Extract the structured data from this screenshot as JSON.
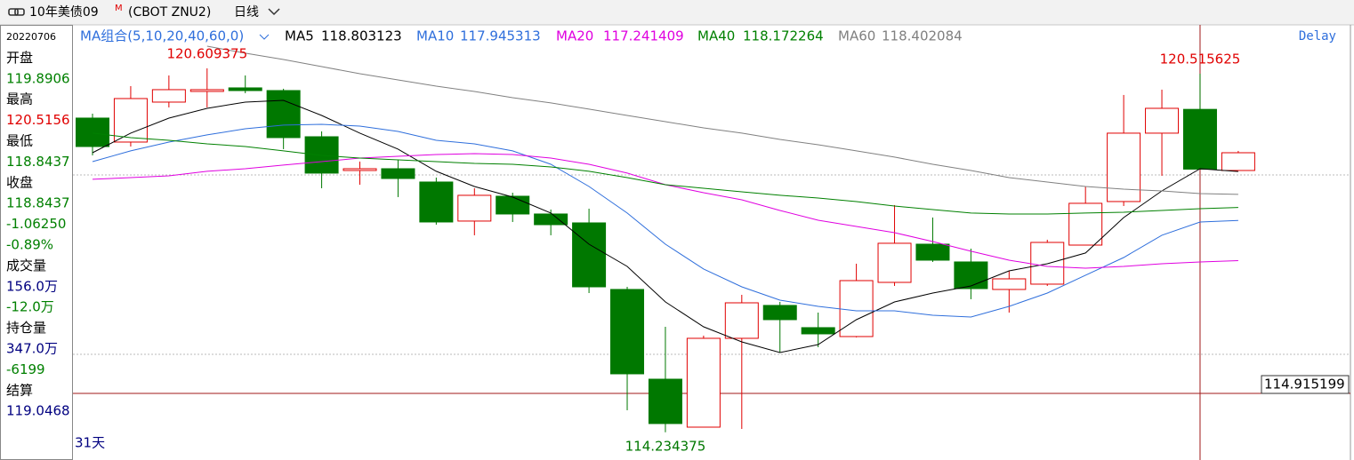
{
  "header": {
    "title": "10年美债09",
    "badge": "M",
    "code": "(CBOT ZNU2)",
    "period": "日线"
  },
  "panel": {
    "items": [
      {
        "text": "20220706",
        "color": "#000000"
      },
      {
        "text": "开盘",
        "color": "#000000"
      },
      {
        "text": "119.8906",
        "color": "#008000"
      },
      {
        "text": "最高",
        "color": "#000000"
      },
      {
        "text": "120.5156",
        "color": "#e00000"
      },
      {
        "text": "最低",
        "color": "#000000"
      },
      {
        "text": "118.8437",
        "color": "#008000"
      },
      {
        "text": "收盘",
        "color": "#000000"
      },
      {
        "text": "118.8437",
        "color": "#008000"
      },
      {
        "text": "-1.06250",
        "color": "#008000"
      },
      {
        "text": "-0.89%",
        "color": "#008000"
      },
      {
        "text": "成交量",
        "color": "#000000"
      },
      {
        "text": "156.0万",
        "color": "#000080"
      },
      {
        "text": "-12.0万",
        "color": "#008000"
      },
      {
        "text": "持仓量",
        "color": "#000000"
      },
      {
        "text": "347.0万",
        "color": "#000080"
      },
      {
        "text": "-6199",
        "color": "#008000"
      },
      {
        "text": "结算",
        "color": "#000000"
      },
      {
        "text": "119.0468",
        "color": "#000080"
      }
    ]
  },
  "chart_data": {
    "type": "candlestick",
    "legend_title": "MA组合(5,10,20,40,60,0)",
    "feed": "Delay",
    "span": "31天",
    "up_color": "#e00000",
    "down_color": "#007800",
    "ylim": [
      113.764,
      121.371
    ],
    "candles": [
      {
        "open": 119.738,
        "high": 119.816,
        "low": 119.085,
        "close": 119.24
      },
      {
        "open": 119.318,
        "high": 120.298,
        "low": 119.24,
        "close": 120.08
      },
      {
        "open": 120.018,
        "high": 120.485,
        "low": 119.925,
        "close": 120.236
      },
      {
        "open": 120.205,
        "high": 120.609375,
        "low": 119.925,
        "close": 120.236
      },
      {
        "open": 120.267,
        "high": 120.485,
        "low": 120.174,
        "close": 120.22
      },
      {
        "open": 120.22,
        "high": 120.252,
        "low": 119.194,
        "close": 119.396
      },
      {
        "open": 119.411,
        "high": 119.505,
        "low": 118.509,
        "close": 118.774
      },
      {
        "open": 118.82,
        "high": 118.976,
        "low": 118.571,
        "close": 118.851
      },
      {
        "open": 118.851,
        "high": 119.007,
        "low": 118.354,
        "close": 118.68
      },
      {
        "open": 118.618,
        "high": 118.696,
        "low": 117.871,
        "close": 117.918
      },
      {
        "open": 117.934,
        "high": 118.509,
        "low": 117.685,
        "close": 118.385
      },
      {
        "open": 118.369,
        "high": 118.431,
        "low": 117.918,
        "close": 118.058
      },
      {
        "open": 118.058,
        "high": 118.136,
        "low": 117.685,
        "close": 117.871
      },
      {
        "open": 117.902,
        "high": 118.151,
        "low": 116.673,
        "close": 116.782
      },
      {
        "open": 116.736,
        "high": 116.782,
        "low": 114.62,
        "close": 115.258
      },
      {
        "open": 115.164,
        "high": 116.082,
        "low": 114.234375,
        "close": 114.387
      },
      {
        "open": 114.324,
        "high": 115.927,
        "low": 114.324,
        "close": 115.88
      },
      {
        "open": 115.88,
        "high": 116.642,
        "low": 114.293,
        "close": 116.502
      },
      {
        "open": 116.456,
        "high": 116.518,
        "low": 115.631,
        "close": 116.207
      },
      {
        "open": 116.067,
        "high": 116.331,
        "low": 115.724,
        "close": 115.958
      },
      {
        "open": 115.911,
        "high": 117.187,
        "low": 115.896,
        "close": 116.891
      },
      {
        "open": 116.86,
        "high": 118.214,
        "low": 116.798,
        "close": 117.545
      },
      {
        "open": 117.529,
        "high": 117.996,
        "low": 117.218,
        "close": 117.249
      },
      {
        "open": 117.218,
        "high": 117.451,
        "low": 116.565,
        "close": 116.751
      },
      {
        "open": 116.736,
        "high": 117.062,
        "low": 116.331,
        "close": 116.922
      },
      {
        "open": 116.829,
        "high": 117.607,
        "low": 116.798,
        "close": 117.56
      },
      {
        "open": 117.513,
        "high": 118.54,
        "low": 117.513,
        "close": 118.245
      },
      {
        "open": 118.276,
        "high": 120.143,
        "low": 118.198,
        "close": 119.474
      },
      {
        "open": 119.474,
        "high": 120.236,
        "low": 118.727,
        "close": 119.909
      },
      {
        "open": 119.8906,
        "high": 120.515625,
        "low": 118.8437,
        "close": 118.8437
      },
      {
        "open": 118.82,
        "high": 119.163,
        "low": 118.82,
        "close": 119.131
      }
    ],
    "annotations": [
      {
        "index": 3,
        "field": "high"
      },
      {
        "index": 29,
        "field": "high"
      },
      {
        "index": 15,
        "field": "low"
      }
    ],
    "series": [
      {
        "name": "MA5",
        "color": "#000000",
        "values": [
          119.131,
          119.474,
          119.738,
          119.909,
          120.018,
          120.049,
          119.785,
          119.474,
          119.194,
          118.805,
          118.54,
          118.354,
          118.074,
          117.529,
          117.14,
          116.518,
          116.082,
          115.818,
          115.631,
          115.771,
          116.207,
          116.518,
          116.673,
          116.798,
          117.062,
          117.187,
          117.374,
          117.996,
          118.462,
          118.851,
          118.803123
        ]
      },
      {
        "name": "MA10",
        "color": "#2f6fdc",
        "values": [
          118.976,
          119.163,
          119.318,
          119.443,
          119.551,
          119.614,
          119.629,
          119.598,
          119.505,
          119.349,
          119.287,
          119.163,
          118.929,
          118.54,
          118.074,
          117.529,
          117.094,
          116.782,
          116.549,
          116.44,
          116.362,
          116.362,
          116.284,
          116.253,
          116.44,
          116.673,
          116.985,
          117.296,
          117.685,
          117.918,
          117.945313
        ]
      },
      {
        "name": "MA20",
        "color": "#e000e0",
        "values": [
          118.665,
          118.696,
          118.727,
          118.805,
          118.851,
          118.914,
          118.976,
          119.038,
          119.069,
          119.1,
          119.116,
          119.1,
          119.038,
          118.929,
          118.774,
          118.571,
          118.431,
          118.307,
          118.12,
          117.949,
          117.84,
          117.731,
          117.576,
          117.405,
          117.249,
          117.14,
          117.109,
          117.14,
          117.187,
          117.218,
          117.241409
        ]
      },
      {
        "name": "MA40",
        "color": "#008000",
        "values": [
          119.474,
          119.396,
          119.349,
          119.287,
          119.24,
          119.163,
          119.085,
          119.038,
          119.007,
          118.976,
          118.945,
          118.929,
          118.882,
          118.805,
          118.696,
          118.571,
          118.509,
          118.447,
          118.385,
          118.338,
          118.276,
          118.198,
          118.136,
          118.074,
          118.058,
          118.058,
          118.074,
          118.089,
          118.12,
          118.151,
          118.172264
        ]
      },
      {
        "name": "MA60",
        "color": "#808080",
        "values": [
          null,
          null,
          null,
          120.998,
          120.874,
          120.765,
          120.64,
          120.516,
          120.407,
          120.298,
          120.205,
          120.096,
          120.003,
          119.894,
          119.785,
          119.676,
          119.567,
          119.474,
          119.365,
          119.271,
          119.163,
          119.054,
          118.929,
          118.82,
          118.696,
          118.618,
          118.54,
          118.493,
          118.462,
          118.416,
          118.402084
        ]
      }
    ],
    "ref_lines": [
      118.742,
      115.6
    ],
    "crosshair": {
      "value": 114.915199,
      "index": 29
    }
  }
}
